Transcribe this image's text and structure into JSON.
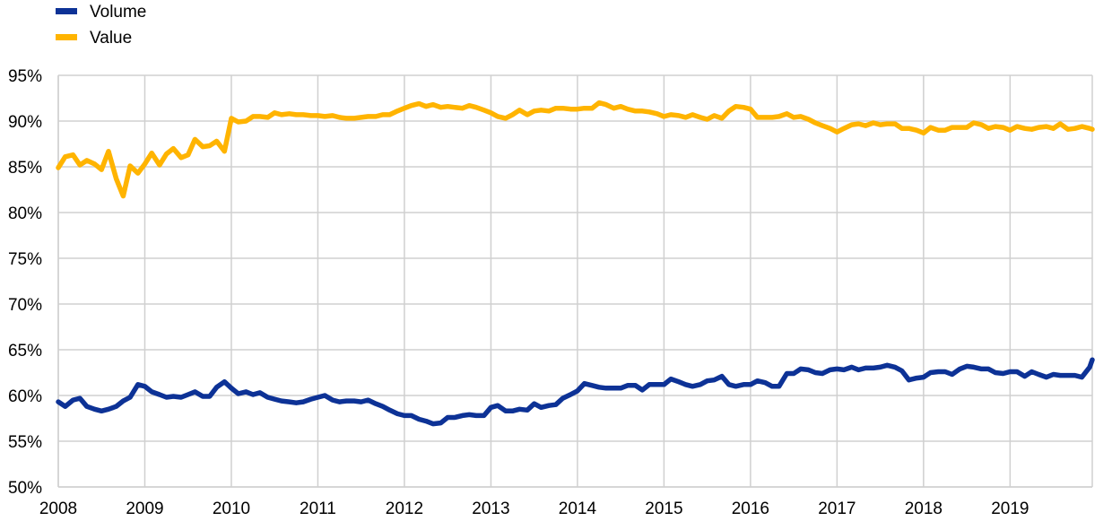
{
  "chart_data": {
    "type": "line",
    "title": "",
    "xlabel": "",
    "ylabel": "",
    "ylim": [
      50,
      95
    ],
    "xlim": [
      2008.0,
      2019.95
    ],
    "grid": true,
    "legend_position": "top-left",
    "y_ticks": [
      "50%",
      "55%",
      "60%",
      "65%",
      "70%",
      "75%",
      "80%",
      "85%",
      "90%",
      "95%"
    ],
    "x_ticks": [
      "2008",
      "2009",
      "2010",
      "2011",
      "2012",
      "2013",
      "2014",
      "2015",
      "2016",
      "2017",
      "2018",
      "2019"
    ],
    "series": [
      {
        "name": "Volume",
        "color": "#0d3296",
        "points": [
          [
            2008.0,
            59.3
          ],
          [
            2008.08,
            58.8
          ],
          [
            2008.17,
            59.5
          ],
          [
            2008.25,
            59.7
          ],
          [
            2008.33,
            58.8
          ],
          [
            2008.42,
            58.5
          ],
          [
            2008.5,
            58.3
          ],
          [
            2008.58,
            58.5
          ],
          [
            2008.67,
            58.8
          ],
          [
            2008.75,
            59.4
          ],
          [
            2008.83,
            59.8
          ],
          [
            2008.92,
            61.2
          ],
          [
            2009.0,
            61.0
          ],
          [
            2009.08,
            60.4
          ],
          [
            2009.17,
            60.1
          ],
          [
            2009.25,
            59.8
          ],
          [
            2009.33,
            59.9
          ],
          [
            2009.42,
            59.8
          ],
          [
            2009.5,
            60.1
          ],
          [
            2009.58,
            60.4
          ],
          [
            2009.67,
            59.9
          ],
          [
            2009.75,
            59.9
          ],
          [
            2009.83,
            60.9
          ],
          [
            2009.92,
            61.5
          ],
          [
            2010.0,
            60.8
          ],
          [
            2010.08,
            60.2
          ],
          [
            2010.17,
            60.4
          ],
          [
            2010.25,
            60.1
          ],
          [
            2010.33,
            60.3
          ],
          [
            2010.42,
            59.8
          ],
          [
            2010.5,
            59.6
          ],
          [
            2010.58,
            59.4
          ],
          [
            2010.67,
            59.3
          ],
          [
            2010.75,
            59.2
          ],
          [
            2010.83,
            59.3
          ],
          [
            2010.92,
            59.6
          ],
          [
            2011.0,
            59.8
          ],
          [
            2011.08,
            60.0
          ],
          [
            2011.17,
            59.5
          ],
          [
            2011.25,
            59.3
          ],
          [
            2011.33,
            59.4
          ],
          [
            2011.42,
            59.4
          ],
          [
            2011.5,
            59.3
          ],
          [
            2011.58,
            59.5
          ],
          [
            2011.67,
            59.1
          ],
          [
            2011.75,
            58.8
          ],
          [
            2011.83,
            58.4
          ],
          [
            2011.92,
            58.0
          ],
          [
            2012.0,
            57.8
          ],
          [
            2012.08,
            57.8
          ],
          [
            2012.17,
            57.4
          ],
          [
            2012.25,
            57.2
          ],
          [
            2012.33,
            56.9
          ],
          [
            2012.42,
            57.0
          ],
          [
            2012.5,
            57.6
          ],
          [
            2012.58,
            57.6
          ],
          [
            2012.67,
            57.8
          ],
          [
            2012.75,
            57.9
          ],
          [
            2012.83,
            57.8
          ],
          [
            2012.92,
            57.8
          ],
          [
            2013.0,
            58.7
          ],
          [
            2013.08,
            58.9
          ],
          [
            2013.17,
            58.3
          ],
          [
            2013.25,
            58.3
          ],
          [
            2013.33,
            58.5
          ],
          [
            2013.42,
            58.4
          ],
          [
            2013.5,
            59.1
          ],
          [
            2013.58,
            58.7
          ],
          [
            2013.67,
            58.9
          ],
          [
            2013.75,
            59.0
          ],
          [
            2013.83,
            59.7
          ],
          [
            2013.92,
            60.1
          ],
          [
            2014.0,
            60.5
          ],
          [
            2014.08,
            61.3
          ],
          [
            2014.17,
            61.1
          ],
          [
            2014.25,
            60.9
          ],
          [
            2014.33,
            60.8
          ],
          [
            2014.42,
            60.8
          ],
          [
            2014.5,
            60.8
          ],
          [
            2014.58,
            61.1
          ],
          [
            2014.67,
            61.1
          ],
          [
            2014.75,
            60.6
          ],
          [
            2014.83,
            61.2
          ],
          [
            2014.92,
            61.2
          ],
          [
            2015.0,
            61.2
          ],
          [
            2015.08,
            61.8
          ],
          [
            2015.17,
            61.5
          ],
          [
            2015.25,
            61.2
          ],
          [
            2015.33,
            61.0
          ],
          [
            2015.42,
            61.2
          ],
          [
            2015.5,
            61.6
          ],
          [
            2015.58,
            61.7
          ],
          [
            2015.67,
            62.1
          ],
          [
            2015.75,
            61.2
          ],
          [
            2015.83,
            61.0
          ],
          [
            2015.92,
            61.2
          ],
          [
            2016.0,
            61.2
          ],
          [
            2016.08,
            61.6
          ],
          [
            2016.17,
            61.4
          ],
          [
            2016.25,
            61.0
          ],
          [
            2016.33,
            61.0
          ],
          [
            2016.42,
            62.4
          ],
          [
            2016.5,
            62.4
          ],
          [
            2016.58,
            62.9
          ],
          [
            2016.67,
            62.8
          ],
          [
            2016.75,
            62.5
          ],
          [
            2016.83,
            62.4
          ],
          [
            2016.92,
            62.8
          ],
          [
            2017.0,
            62.9
          ],
          [
            2017.08,
            62.8
          ],
          [
            2017.17,
            63.1
          ],
          [
            2017.25,
            62.8
          ],
          [
            2017.33,
            63.0
          ],
          [
            2017.42,
            63.0
          ],
          [
            2017.5,
            63.1
          ],
          [
            2017.58,
            63.3
          ],
          [
            2017.67,
            63.1
          ],
          [
            2017.75,
            62.7
          ],
          [
            2017.83,
            61.7
          ],
          [
            2017.92,
            61.9
          ],
          [
            2018.0,
            62.0
          ],
          [
            2018.08,
            62.5
          ],
          [
            2018.17,
            62.6
          ],
          [
            2018.25,
            62.6
          ],
          [
            2018.33,
            62.3
          ],
          [
            2018.42,
            62.9
          ],
          [
            2018.5,
            63.2
          ],
          [
            2018.58,
            63.1
          ],
          [
            2018.67,
            62.9
          ],
          [
            2018.75,
            62.9
          ],
          [
            2018.83,
            62.5
          ],
          [
            2018.92,
            62.4
          ],
          [
            2019.0,
            62.6
          ],
          [
            2019.08,
            62.6
          ],
          [
            2019.17,
            62.1
          ],
          [
            2019.25,
            62.6
          ],
          [
            2019.33,
            62.3
          ],
          [
            2019.42,
            62.0
          ],
          [
            2019.5,
            62.3
          ],
          [
            2019.58,
            62.2
          ],
          [
            2019.67,
            62.2
          ],
          [
            2019.75,
            62.2
          ],
          [
            2019.83,
            62.0
          ],
          [
            2019.92,
            63.1
          ],
          [
            2019.95,
            63.9
          ]
        ]
      },
      {
        "name": "Value",
        "color": "#ffb400",
        "points": [
          [
            2008.0,
            84.9
          ],
          [
            2008.08,
            86.1
          ],
          [
            2008.17,
            86.3
          ],
          [
            2008.25,
            85.2
          ],
          [
            2008.33,
            85.7
          ],
          [
            2008.42,
            85.3
          ],
          [
            2008.5,
            84.7
          ],
          [
            2008.58,
            86.7
          ],
          [
            2008.67,
            83.7
          ],
          [
            2008.75,
            81.8
          ],
          [
            2008.83,
            85.1
          ],
          [
            2008.92,
            84.3
          ],
          [
            2009.0,
            85.3
          ],
          [
            2009.08,
            86.5
          ],
          [
            2009.17,
            85.2
          ],
          [
            2009.25,
            86.4
          ],
          [
            2009.33,
            87.0
          ],
          [
            2009.42,
            86.0
          ],
          [
            2009.5,
            86.3
          ],
          [
            2009.58,
            88.0
          ],
          [
            2009.67,
            87.2
          ],
          [
            2009.75,
            87.3
          ],
          [
            2009.83,
            87.8
          ],
          [
            2009.92,
            86.7
          ],
          [
            2010.0,
            90.3
          ],
          [
            2010.08,
            89.9
          ],
          [
            2010.17,
            90.0
          ],
          [
            2010.25,
            90.5
          ],
          [
            2010.33,
            90.5
          ],
          [
            2010.42,
            90.4
          ],
          [
            2010.5,
            90.9
          ],
          [
            2010.58,
            90.7
          ],
          [
            2010.67,
            90.8
          ],
          [
            2010.75,
            90.7
          ],
          [
            2010.83,
            90.7
          ],
          [
            2010.92,
            90.6
          ],
          [
            2011.0,
            90.6
          ],
          [
            2011.08,
            90.5
          ],
          [
            2011.17,
            90.6
          ],
          [
            2011.25,
            90.4
          ],
          [
            2011.33,
            90.3
          ],
          [
            2011.42,
            90.3
          ],
          [
            2011.5,
            90.4
          ],
          [
            2011.58,
            90.5
          ],
          [
            2011.67,
            90.5
          ],
          [
            2011.75,
            90.7
          ],
          [
            2011.83,
            90.7
          ],
          [
            2011.92,
            91.1
          ],
          [
            2012.0,
            91.4
          ],
          [
            2012.08,
            91.7
          ],
          [
            2012.17,
            91.9
          ],
          [
            2012.25,
            91.6
          ],
          [
            2012.33,
            91.8
          ],
          [
            2012.42,
            91.5
          ],
          [
            2012.5,
            91.6
          ],
          [
            2012.58,
            91.5
          ],
          [
            2012.67,
            91.4
          ],
          [
            2012.75,
            91.7
          ],
          [
            2012.83,
            91.5
          ],
          [
            2012.92,
            91.2
          ],
          [
            2013.0,
            90.9
          ],
          [
            2013.08,
            90.5
          ],
          [
            2013.17,
            90.3
          ],
          [
            2013.25,
            90.7
          ],
          [
            2013.33,
            91.2
          ],
          [
            2013.42,
            90.7
          ],
          [
            2013.5,
            91.1
          ],
          [
            2013.58,
            91.2
          ],
          [
            2013.67,
            91.1
          ],
          [
            2013.75,
            91.4
          ],
          [
            2013.83,
            91.4
          ],
          [
            2013.92,
            91.3
          ],
          [
            2014.0,
            91.3
          ],
          [
            2014.08,
            91.4
          ],
          [
            2014.17,
            91.4
          ],
          [
            2014.25,
            92.0
          ],
          [
            2014.33,
            91.8
          ],
          [
            2014.42,
            91.4
          ],
          [
            2014.5,
            91.6
          ],
          [
            2014.58,
            91.3
          ],
          [
            2014.67,
            91.1
          ],
          [
            2014.75,
            91.1
          ],
          [
            2014.83,
            91.0
          ],
          [
            2014.92,
            90.8
          ],
          [
            2015.0,
            90.5
          ],
          [
            2015.08,
            90.7
          ],
          [
            2015.17,
            90.6
          ],
          [
            2015.25,
            90.4
          ],
          [
            2015.33,
            90.7
          ],
          [
            2015.42,
            90.4
          ],
          [
            2015.5,
            90.2
          ],
          [
            2015.58,
            90.6
          ],
          [
            2015.67,
            90.3
          ],
          [
            2015.75,
            91.1
          ],
          [
            2015.83,
            91.6
          ],
          [
            2015.92,
            91.5
          ],
          [
            2016.0,
            91.3
          ],
          [
            2016.08,
            90.4
          ],
          [
            2016.17,
            90.4
          ],
          [
            2016.25,
            90.4
          ],
          [
            2016.33,
            90.5
          ],
          [
            2016.42,
            90.8
          ],
          [
            2016.5,
            90.4
          ],
          [
            2016.58,
            90.5
          ],
          [
            2016.67,
            90.2
          ],
          [
            2016.75,
            89.8
          ],
          [
            2016.83,
            89.5
          ],
          [
            2016.92,
            89.2
          ],
          [
            2017.0,
            88.8
          ],
          [
            2017.08,
            89.2
          ],
          [
            2017.17,
            89.6
          ],
          [
            2017.25,
            89.7
          ],
          [
            2017.33,
            89.5
          ],
          [
            2017.42,
            89.8
          ],
          [
            2017.5,
            89.6
          ],
          [
            2017.58,
            89.7
          ],
          [
            2017.67,
            89.7
          ],
          [
            2017.75,
            89.2
          ],
          [
            2017.83,
            89.2
          ],
          [
            2017.92,
            89.0
          ],
          [
            2018.0,
            88.7
          ],
          [
            2018.08,
            89.3
          ],
          [
            2018.17,
            89.0
          ],
          [
            2018.25,
            89.0
          ],
          [
            2018.33,
            89.3
          ],
          [
            2018.42,
            89.3
          ],
          [
            2018.5,
            89.3
          ],
          [
            2018.58,
            89.8
          ],
          [
            2018.67,
            89.6
          ],
          [
            2018.75,
            89.2
          ],
          [
            2018.83,
            89.4
          ],
          [
            2018.92,
            89.3
          ],
          [
            2019.0,
            89.0
          ],
          [
            2019.08,
            89.4
          ],
          [
            2019.17,
            89.2
          ],
          [
            2019.25,
            89.1
          ],
          [
            2019.33,
            89.3
          ],
          [
            2019.42,
            89.4
          ],
          [
            2019.5,
            89.2
          ],
          [
            2019.58,
            89.7
          ],
          [
            2019.67,
            89.1
          ],
          [
            2019.75,
            89.2
          ],
          [
            2019.83,
            89.4
          ],
          [
            2019.92,
            89.2
          ],
          [
            2019.95,
            89.1
          ]
        ]
      }
    ]
  }
}
